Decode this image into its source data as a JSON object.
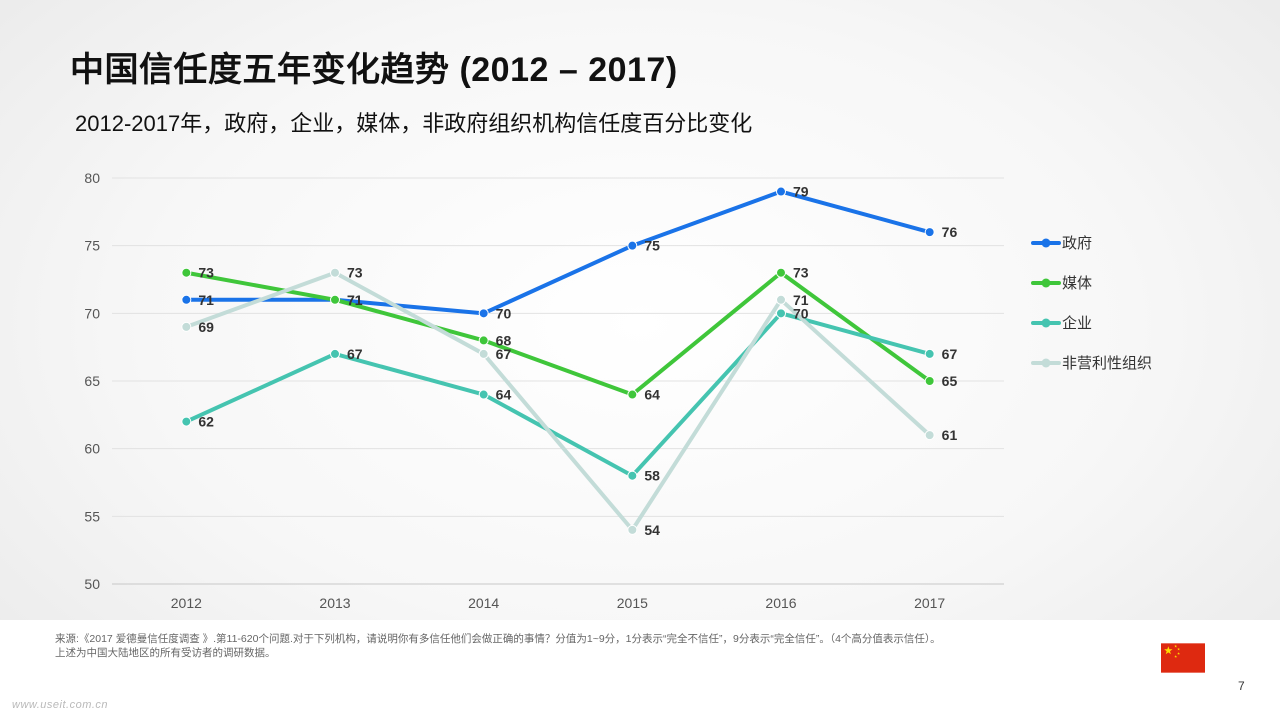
{
  "title": "中国信任度五年变化趋势 (2012 – 2017)",
  "subtitle": "2012-2017年，政府，企业，媒体，非政府组织机构信任度百分比变化",
  "chart_data": {
    "type": "line",
    "x": [
      "2012",
      "2013",
      "2014",
      "2015",
      "2016",
      "2017"
    ],
    "ylim": [
      50,
      80
    ],
    "yticks": [
      50,
      55,
      60,
      65,
      70,
      75,
      80
    ],
    "grid": "horizontal",
    "legend_position": "right",
    "series": [
      {
        "name": "政府",
        "color": "#1a73e8",
        "values": [
          71,
          71,
          70,
          75,
          79,
          76
        ]
      },
      {
        "name": "媒体",
        "color": "#3fc63a",
        "values": [
          73,
          71,
          68,
          64,
          73,
          65
        ]
      },
      {
        "name": "企业",
        "color": "#45c4b0",
        "values": [
          62,
          67,
          64,
          58,
          70,
          67
        ]
      },
      {
        "name": "非营利性组织",
        "color": "#c3dcd8",
        "values": [
          69,
          73,
          67,
          54,
          71,
          61
        ]
      }
    ]
  },
  "footer": {
    "source_note": "来源:《2017 爱德曼信任度调查 》.第11-620个问题.对于下列机构，请说明你有多信任他们会做正确的事情？分值为1~9分，1分表示“完全不信任”，9分表示“完全信任”。（4个高分值表示信任）。上述为中国大陆地区的所有受访者的调研数据。",
    "page_number": "7",
    "watermark": "www.useit.com.cn"
  },
  "flag": {
    "icon": "china-flag-icon",
    "red": "#de2910",
    "yellow": "#ffde00"
  }
}
